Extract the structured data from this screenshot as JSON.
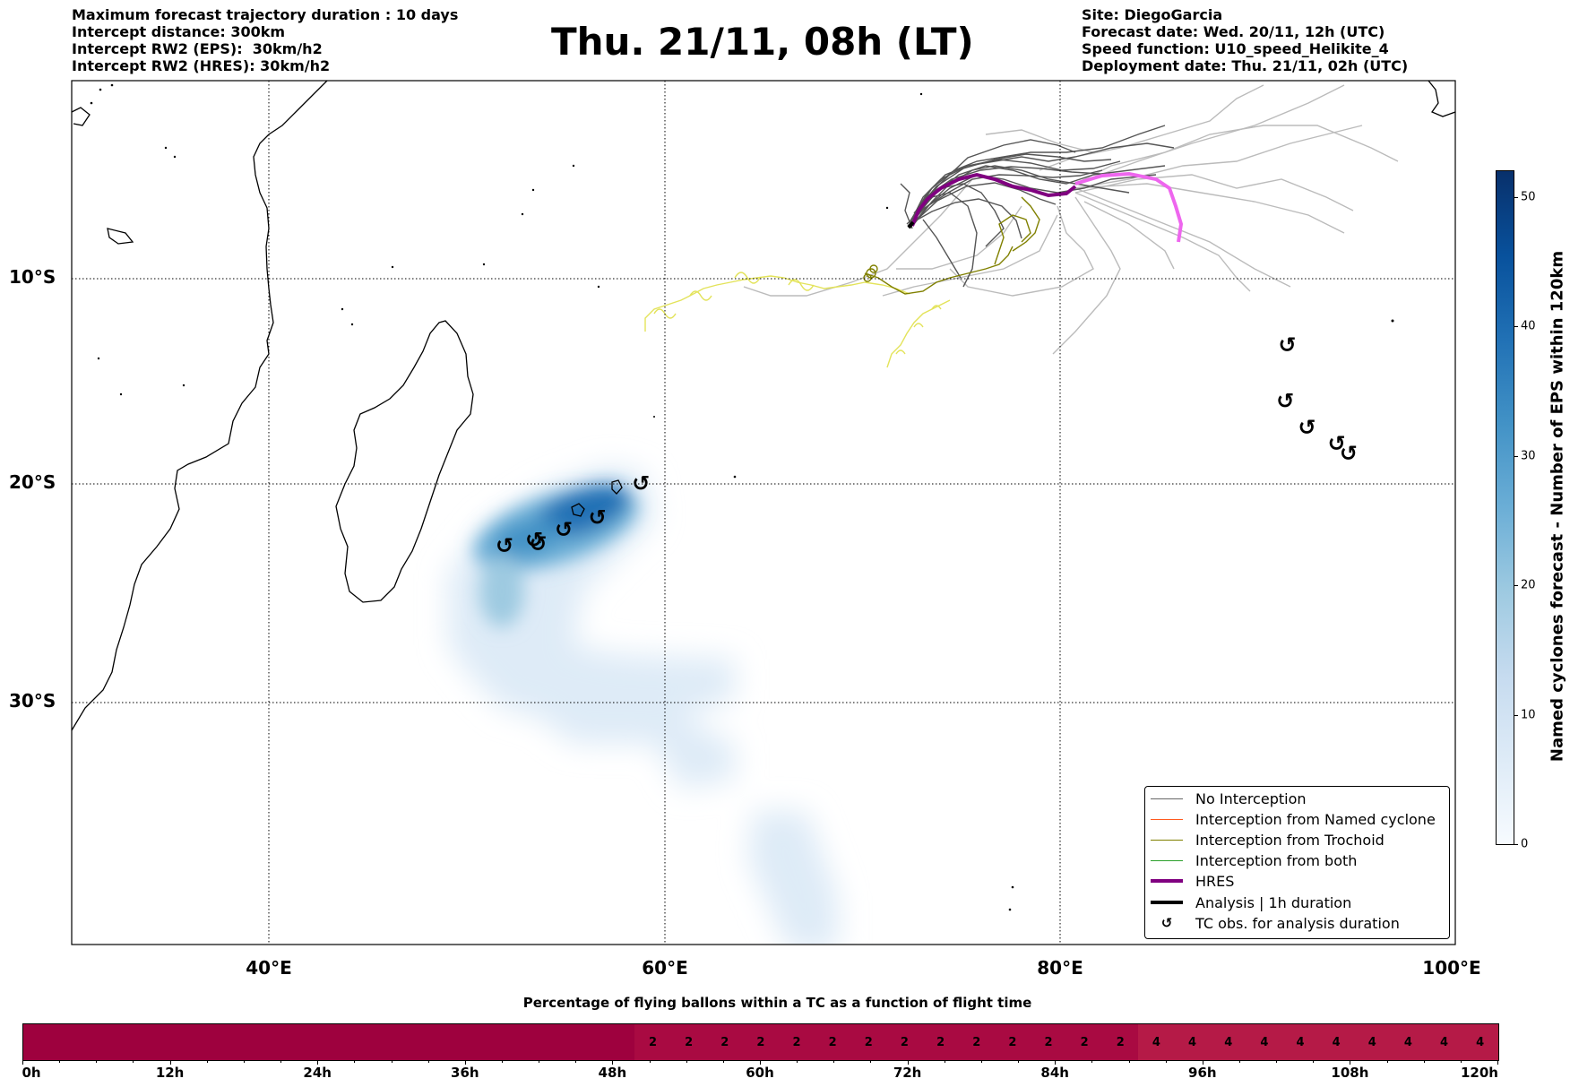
{
  "header_left": [
    "Maximum forecast trajectory duration : 10 days",
    "Intercept distance: 300km",
    "Intercept RW2 (EPS):  30km/h2",
    "Intercept RW2 (HRES): 30km/h2"
  ],
  "title": "Thu. 21/11, 08h (LT)",
  "header_right": [
    "Site: DiegoGarcia",
    "Forecast date: Wed. 20/11, 12h (UTC)",
    "Speed function: U10_speed_Helikite_4",
    "Deployment date: Thu. 21/11, 02h (UTC)"
  ],
  "map": {
    "lon_range": [
      30,
      100
    ],
    "lat_range": [
      -43,
      0
    ],
    "lat_labels": [
      "10°S",
      "20°S",
      "30°S"
    ],
    "lon_labels": [
      "40°E",
      "60°E",
      "80°E",
      "100°E"
    ],
    "gridlines": true,
    "colors": {
      "no_interception": "#555555",
      "no_interception_light": "#bbbbbb",
      "named_cyclone": "#ff5a1f",
      "trochoid": "#808000",
      "trochoid_light": "#e3e35a",
      "both": "#2ca02c",
      "hres": "#800080",
      "hres_light": "#ee66ee",
      "analysis": "#000000"
    },
    "tc_symbol": "↺",
    "tc_observations": [
      [
        51.9,
        -23.2
      ],
      [
        53.4,
        -22.9
      ],
      [
        53.6,
        -23.1
      ],
      [
        54.9,
        -22.4
      ],
      [
        56.6,
        -21.8
      ],
      [
        58.8,
        -20.1
      ],
      [
        91.5,
        -13.2
      ],
      [
        91.4,
        -16.0
      ],
      [
        92.5,
        -17.3
      ],
      [
        94.0,
        -18.1
      ],
      [
        94.6,
        -18.6
      ]
    ]
  },
  "legend": {
    "items": [
      {
        "label": "No Interception",
        "color": "#666666",
        "width": 1
      },
      {
        "label": "Interception from Named cyclone",
        "color": "#ff5a1f",
        "width": 1
      },
      {
        "label": "Interception from Trochoid",
        "color": "#808000",
        "width": 1
      },
      {
        "label": "Interception from both",
        "color": "#2ca02c",
        "width": 1
      },
      {
        "label": "HRES",
        "color": "#800080",
        "width": 4
      },
      {
        "label": "Analysis | 1h duration",
        "color": "#000000",
        "width": 4
      },
      {
        "label": "TC obs. for analysis duration",
        "symbol": "↺"
      }
    ]
  },
  "colorbar": {
    "label": "Named cyclones forecast - Number of EPS within 120km",
    "ticks": [
      "0",
      "10",
      "20",
      "30",
      "40",
      "50"
    ],
    "max": 52
  },
  "percentage_bar": {
    "title": "Percentage of flying ballons within a TC as a function of flight time",
    "values": [
      0,
      0,
      0,
      0,
      0,
      0,
      0,
      0,
      0,
      0,
      0,
      0,
      0,
      0,
      0,
      0,
      0,
      2,
      2,
      2,
      2,
      2,
      2,
      2,
      2,
      2,
      2,
      2,
      2,
      2,
      2,
      4,
      4,
      4,
      4,
      4,
      4,
      4,
      4,
      4,
      4
    ],
    "colors": {
      "0": "#9e013e",
      "2": "#a90a42",
      "4": "#b51a47"
    },
    "time_ticks": [
      "0h",
      "12h",
      "24h",
      "36h",
      "48h",
      "60h",
      "72h",
      "84h",
      "96h",
      "108h",
      "120h"
    ]
  }
}
